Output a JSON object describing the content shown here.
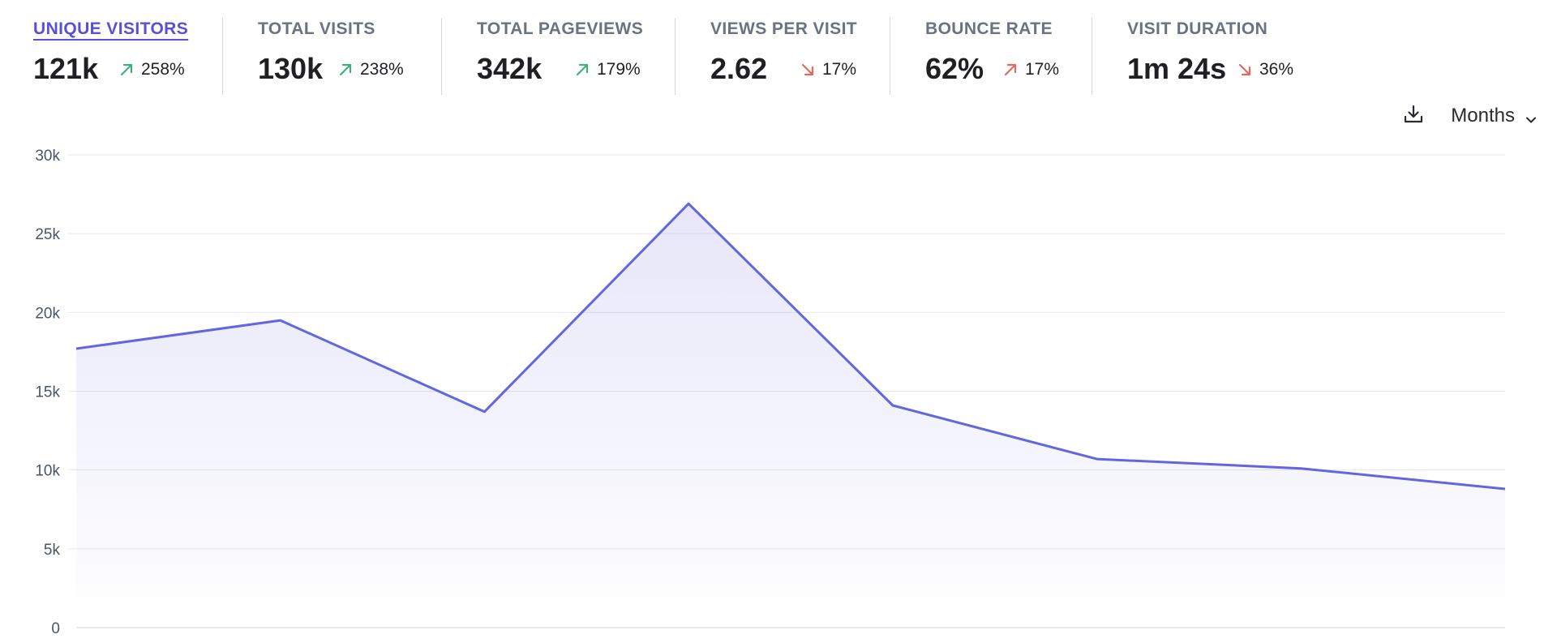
{
  "stats": [
    {
      "label": "UNIQUE VISITORS",
      "value": "121k",
      "change": "258%",
      "trend": "up",
      "active": true
    },
    {
      "label": "TOTAL VISITS",
      "value": "130k",
      "change": "238%",
      "trend": "up",
      "active": false
    },
    {
      "label": "TOTAL PAGEVIEWS",
      "value": "342k",
      "change": "179%",
      "trend": "up",
      "active": false
    },
    {
      "label": "VIEWS PER VISIT",
      "value": "2.62",
      "change": "17%",
      "trend": "down",
      "active": false
    },
    {
      "label": "BOUNCE RATE",
      "value": "62%",
      "change": "17%",
      "trend": "up-bad",
      "active": false
    },
    {
      "label": "VISIT DURATION",
      "value": "1m 24s",
      "change": "36%",
      "trend": "down",
      "active": false
    }
  ],
  "toolbar": {
    "download_icon": "download-icon",
    "interval_label": "Months",
    "chevron_icon": "chevron-down-icon"
  },
  "colors": {
    "accent": "#5b4fd6",
    "line": "#6366dd",
    "trend_good": "#3fae7f",
    "trend_bad": "#e06a5f",
    "grid": "#e5e7eb"
  },
  "chart_data": {
    "type": "area",
    "series": [
      {
        "values": [
          17700,
          19500,
          13700,
          26900,
          14100,
          10700,
          10100,
          8800
        ]
      }
    ],
    "yticks": [
      "30k",
      "25k",
      "20k",
      "15k",
      "10k",
      "5k",
      "0"
    ],
    "ylim": [
      0,
      30000
    ],
    "grid": true
  }
}
